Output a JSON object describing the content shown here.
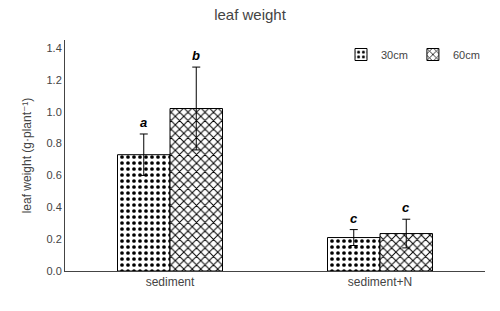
{
  "chart_data": {
    "type": "bar",
    "title": "leaf weight",
    "ylabel": "leaf weight (g·plant⁻¹)",
    "categories": [
      "sediment",
      "sediment+N"
    ],
    "series": [
      {
        "name": "30cm",
        "color": "#000000",
        "marker": "dots",
        "values": [
          0.73,
          0.21
        ],
        "errors": [
          0.13,
          0.05
        ],
        "annotations": [
          "a",
          "c"
        ]
      },
      {
        "name": "60cm",
        "color": "#000000",
        "marker": "crosses",
        "values": [
          1.02,
          0.235
        ],
        "errors": [
          0.26,
          0.09
        ],
        "annotations": [
          "b",
          "c"
        ]
      }
    ],
    "ylim": [
      0,
      1.45
    ],
    "yticks": [
      {
        "value": 0,
        "label": "0.0"
      },
      0.2,
      0.4,
      0.6,
      0.8,
      {
        "value": 1.0,
        "label": "1.0"
      },
      1.2,
      1.4
    ],
    "grid": false,
    "legend": "upper right"
  }
}
